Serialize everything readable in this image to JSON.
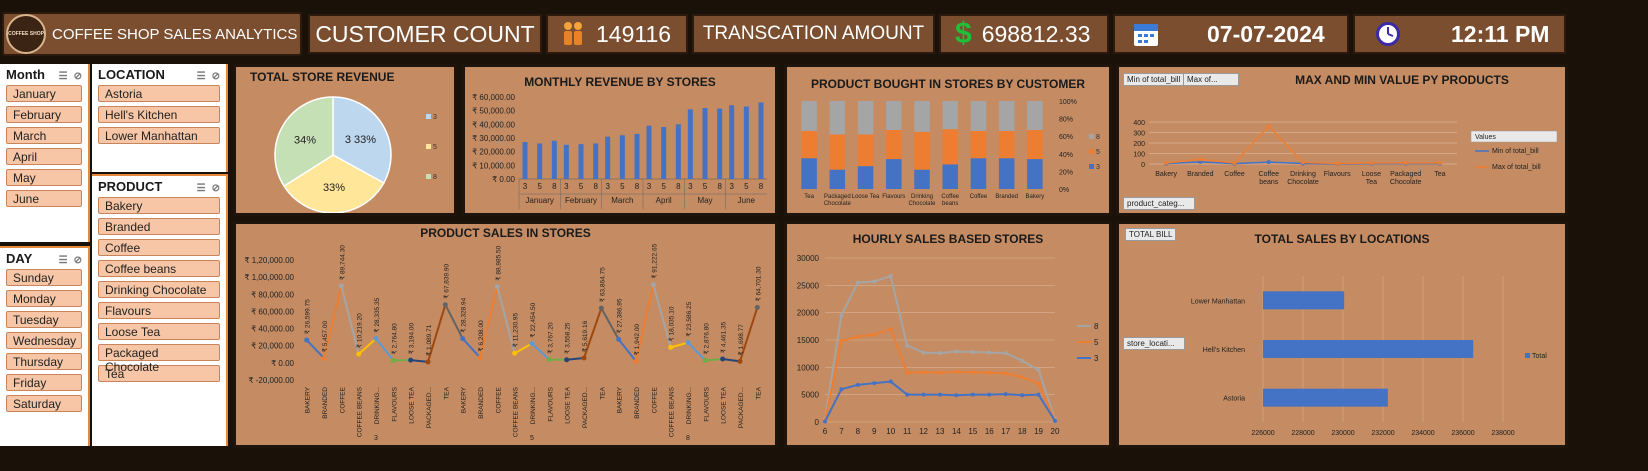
{
  "header": {
    "brand": "COFFEE SHOP SALES ANALYTICS",
    "logo_text": "COFFEE SHOP",
    "customer_count_label": "CUSTOMER COUNT",
    "customer_count_value": "149116",
    "transaction_label": "TRANSCATION AMOUNT",
    "transaction_value": "698812.33",
    "date": "07-07-2024",
    "time": "12:11 PM"
  },
  "slicers": {
    "month": {
      "title": "Month",
      "items": [
        "January",
        "February",
        "March",
        "April",
        "May",
        "June"
      ]
    },
    "location": {
      "title": "LOCATION",
      "items": [
        "Astoria",
        "Hell's Kitchen",
        "Lower Manhattan"
      ]
    },
    "product": {
      "title": "PRODUCT",
      "items": [
        "Bakery",
        "Branded",
        "Coffee",
        "Coffee beans",
        "Drinking Chocolate",
        "Flavours",
        "Loose Tea",
        "Packaged Chocolate",
        "Tea"
      ]
    },
    "day": {
      "title": "DAY",
      "items": [
        "Sunday",
        "Monday",
        "Tuesday",
        "Wednesday",
        "Thursday",
        "Friday",
        "Saturday"
      ]
    }
  },
  "chart_data": [
    {
      "id": "total-store-revenue",
      "type": "pie",
      "title": "TOTAL STORE REVENUE",
      "slices": [
        {
          "label": "3 33%",
          "name": "3",
          "value": 33,
          "color": "#bdd7ee"
        },
        {
          "label": "33%",
          "name": "5",
          "value": 33,
          "color": "#ffe699"
        },
        {
          "label": "34%",
          "name": "8",
          "value": 34,
          "color": "#c5e0b4"
        }
      ]
    },
    {
      "id": "monthly-revenue",
      "type": "bar",
      "title": "MONTHLY REVENUE BY STORES",
      "months": [
        "January",
        "February",
        "March",
        "April",
        "May",
        "June"
      ],
      "stores": [
        "3",
        "5",
        "8"
      ],
      "values": [
        [
          27000,
          26000,
          28000
        ],
        [
          25000,
          25500,
          26000
        ],
        [
          31000,
          32000,
          33000
        ],
        [
          39000,
          38000,
          40000
        ],
        [
          51000,
          52000,
          51500
        ],
        [
          54000,
          53000,
          56000
        ]
      ],
      "yticks": [
        "₹ 60,000.00",
        "₹ 50,000.00",
        "₹ 40,000.00",
        "₹ 30,000.00",
        "₹ 20,000.00",
        "₹ 10,000.00",
        "₹ 0.00"
      ],
      "ylim": [
        0,
        60000
      ]
    },
    {
      "id": "product-bought",
      "type": "bar",
      "stacked": "100%",
      "title": "PRODUCT BOUGHT IN STORES BY CUSTOMER",
      "categories": [
        "Tea",
        "Packaged Chocolate",
        "Loose Tea",
        "Flavours",
        "Drinking Chocolate",
        "Coffee beans",
        "Coffee",
        "Branded",
        "Bakery"
      ],
      "series": [
        {
          "name": "3",
          "color": "#4472c4",
          "values": [
            35,
            22,
            26,
            34,
            22,
            28,
            35,
            35,
            34
          ]
        },
        {
          "name": "5",
          "color": "#ed7d31",
          "values": [
            31,
            40,
            36,
            33,
            43,
            40,
            31,
            31,
            33
          ]
        },
        {
          "name": "8",
          "color": "#a5a5a5",
          "values": [
            34,
            38,
            38,
            33,
            35,
            32,
            34,
            34,
            33
          ]
        }
      ],
      "yticks": [
        "100%",
        "80%",
        "60%",
        "40%",
        "20%",
        "0%"
      ]
    },
    {
      "id": "max-min",
      "type": "line",
      "title": "MAX AND MIN VALUE PY PRODUCTS",
      "buttons": [
        "Min of total_bill",
        "Max of..."
      ],
      "filter": "product_categ...",
      "legend_title": "Values",
      "categories": [
        "Bakery",
        "Branded",
        "Coffee",
        "Coffee beans",
        "Drinking Chocolate",
        "Flavours",
        "Loose Tea",
        "Packaged Chocolate",
        "Tea"
      ],
      "series": [
        {
          "name": "Min of total_bill",
          "color": "#4472c4",
          "values": [
            3,
            20,
            3,
            18,
            5,
            1,
            3,
            3,
            3
          ]
        },
        {
          "name": "Max of total_bill",
          "color": "#ed7d31",
          "values": [
            10,
            45,
            10,
            360,
            15,
            5,
            10,
            10,
            10
          ]
        }
      ],
      "yticks": [
        "400",
        "300",
        "200",
        "100",
        "0"
      ],
      "ylim": [
        0,
        400
      ]
    },
    {
      "id": "product-sales",
      "type": "line",
      "title": "PRODUCT SALES IN STORES",
      "groups": [
        "3",
        "5",
        "8"
      ],
      "categories": [
        "BAKERY",
        "BRANDED",
        "COFFEE",
        "COFFEE BEANS",
        "DRINKING...",
        "FLAVOURS",
        "LOOSE TEA",
        "PACKAGED...",
        "TEA"
      ],
      "values": [
        [
          26599.75,
          5457.0,
          89744.3,
          10219.2,
          28335.35,
          2764.8,
          3194.0,
          1089.71,
          67839.9
        ],
        [
          28328.94,
          6208.0,
          88985.5,
          11230.95,
          22454.5,
          3767.2,
          3558.25,
          5619.16,
          63864.75
        ],
        [
          27386.95,
          1942.0,
          91222.65,
          18035.1,
          23586.25,
          2876.8,
          4461.35,
          1698.77,
          64701.3
        ]
      ],
      "labels": [
        [
          "₹ 26,599.75",
          "₹ 5,457.00",
          "₹ 89,744.30",
          "₹ 10,219.20",
          "₹ 28,335.35",
          "₹ 2,764.80",
          "₹ 3,194.00",
          "₹ 1,089.71",
          "₹ 67,839.90"
        ],
        [
          "₹ 28,328.94",
          "₹ 6,208.00",
          "₹ 88,985.50",
          "₹ 11,230.95",
          "₹ 22,454.50",
          "₹ 3,767.20",
          "₹ 3,558.25",
          "₹ 5,619.16",
          "₹ 63,864.75"
        ],
        [
          "₹ 27,386.95",
          "₹ 1,942.00",
          "₹ 91,222.65",
          "₹ 18,035.10",
          "₹ 23,586.25",
          "₹ 2,876.80",
          "₹ 4,461.35",
          "₹ 1,698.77",
          "₹ 64,701.30"
        ]
      ],
      "yticks": [
        "₹ 1,20,000.00",
        "₹ 1,00,000.00",
        "₹ 80,000.00",
        "₹ 60,000.00",
        "₹ 40,000.00",
        "₹ 20,000.00",
        "₹ 0.00",
        "₹ -20,000.00"
      ],
      "ylim": [
        -20000,
        120000
      ]
    },
    {
      "id": "hourly-sales",
      "type": "line",
      "title": "HOURLY SALES BASED STORES",
      "x": [
        6,
        7,
        8,
        9,
        10,
        11,
        12,
        13,
        14,
        15,
        16,
        17,
        18,
        19,
        20
      ],
      "series": [
        {
          "name": "8",
          "color": "#a5a5a5",
          "values": [
            500,
            19500,
            25500,
            25700,
            26700,
            14000,
            12700,
            12600,
            12900,
            12800,
            12700,
            12600,
            11200,
            9500,
            500
          ]
        },
        {
          "name": "5",
          "color": "#ed7d31",
          "values": [
            200,
            14800,
            15600,
            16000,
            17000,
            9000,
            9100,
            9000,
            9200,
            9100,
            9000,
            8900,
            8200,
            7000,
            300
          ]
        },
        {
          "name": "3",
          "color": "#4472c4",
          "values": [
            100,
            6000,
            6800,
            7100,
            7400,
            5000,
            5000,
            5000,
            4900,
            5000,
            5000,
            5100,
            4900,
            5000,
            200
          ]
        }
      ],
      "yticks": [
        "30000",
        "25000",
        "20000",
        "15000",
        "10000",
        "5000",
        "0"
      ],
      "ylim": [
        0,
        30000
      ]
    },
    {
      "id": "sales-by-location",
      "type": "bar",
      "orientation": "horizontal",
      "title": "TOTAL SALES BY LOCATIONS",
      "button": "TOTAL BILL",
      "filter": "store_locati...",
      "legend": "Total",
      "categories": [
        "Lower Manhattan",
        "Hell's Kitchen",
        "Astoria"
      ],
      "values": [
        230057,
        236511,
        232243
      ],
      "xticks": [
        "226000",
        "228000",
        "230000",
        "232000",
        "234000",
        "236000",
        "238000"
      ],
      "xlim": [
        226000,
        238000
      ]
    }
  ]
}
